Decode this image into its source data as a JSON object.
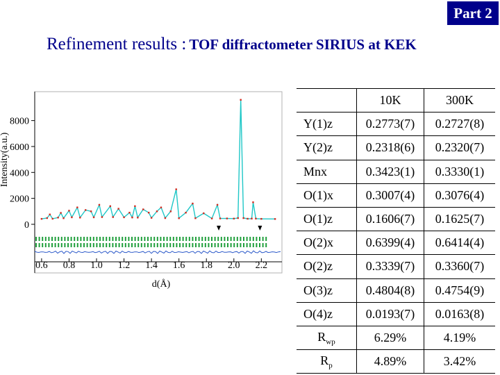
{
  "badge": "Part 2",
  "heading": {
    "main": "Refinement results :",
    "sub": "TOF diffractometer SIRIUS at KEK"
  },
  "chart_data": {
    "type": "line",
    "xlabel": "d(Å)",
    "ylabel": "Intensity(a.u.)",
    "xlim": [
      0.55,
      2.35
    ],
    "ylim": [
      0,
      9800
    ],
    "xticks": [
      "0.6",
      "0.8",
      "1.0",
      "1.2",
      "1.4",
      "1.6",
      "1.8",
      "2.0",
      "2.2"
    ],
    "yticks": [
      "0",
      "2000",
      "4000",
      "6000",
      "8000"
    ],
    "colors": {
      "observed": "#d42a1f",
      "calculated": "#1fc7c7",
      "ticks": "#1e9e3a",
      "difference": "#2a58c9"
    },
    "series": [
      {
        "values": [
          [
            0.6,
            420
          ],
          [
            0.64,
            480
          ],
          [
            0.66,
            760
          ],
          [
            0.68,
            430
          ],
          [
            0.72,
            520
          ],
          [
            0.74,
            880
          ],
          [
            0.76,
            470
          ],
          [
            0.8,
            1050
          ],
          [
            0.82,
            540
          ],
          [
            0.86,
            1300
          ],
          [
            0.88,
            520
          ],
          [
            0.92,
            1100
          ],
          [
            0.96,
            1000
          ],
          [
            0.98,
            540
          ],
          [
            1.02,
            1500
          ],
          [
            1.04,
            560
          ],
          [
            1.1,
            1400
          ],
          [
            1.12,
            560
          ],
          [
            1.16,
            1200
          ],
          [
            1.2,
            540
          ],
          [
            1.24,
            900
          ],
          [
            1.26,
            530
          ],
          [
            1.28,
            1400
          ],
          [
            1.3,
            520
          ],
          [
            1.34,
            1150
          ],
          [
            1.38,
            900
          ],
          [
            1.4,
            500
          ],
          [
            1.44,
            1000
          ],
          [
            1.47,
            1300
          ],
          [
            1.5,
            480
          ],
          [
            1.54,
            1000
          ],
          [
            1.58,
            2700
          ],
          [
            1.6,
            470
          ],
          [
            1.65,
            900
          ],
          [
            1.7,
            1600
          ],
          [
            1.72,
            470
          ],
          [
            1.78,
            850
          ],
          [
            1.84,
            450
          ],
          [
            1.88,
            1500
          ],
          [
            1.9,
            450
          ],
          [
            1.95,
            450
          ],
          [
            2.0,
            440
          ],
          [
            2.03,
            480
          ],
          [
            2.05,
            9600
          ],
          [
            2.07,
            480
          ],
          [
            2.1,
            430
          ],
          [
            2.13,
            440
          ],
          [
            2.14,
            1700
          ],
          [
            2.16,
            440
          ],
          [
            2.2,
            420
          ],
          [
            2.3,
            410
          ]
        ]
      }
    ],
    "tick_rows": 2
  },
  "table": {
    "header": [
      "",
      "10K",
      "300K"
    ],
    "rows": [
      [
        "Y(1)z",
        "0.2773(7)",
        "0.2727(8)"
      ],
      [
        "Y(2)z",
        "0.2318(6)",
        "0.2320(7)"
      ],
      [
        "Mnx",
        "0.3423(1)",
        "0.3330(1)"
      ],
      [
        "O(1)x",
        "0.3007(4)",
        "0.3076(4)"
      ],
      [
        "O(1)z",
        "0.1606(7)",
        "0.1625(7)"
      ],
      [
        "O(2)x",
        "0.6399(4)",
        "0.6414(4)"
      ],
      [
        "O(2)z",
        "0.3339(7)",
        "0.3360(7)"
      ],
      [
        "O(3)z",
        "0.4804(8)",
        "0.4754(9)"
      ],
      [
        "O(4)z",
        "0.0193(7)",
        "0.0163(8)"
      ]
    ],
    "rwp": {
      "base": "R",
      "sub": "wp",
      "v10": "6.29%",
      "v300": "4.19%"
    },
    "rp": {
      "base": "R",
      "sub": "p",
      "v10": "4.89%",
      "v300": "3.42%"
    }
  }
}
